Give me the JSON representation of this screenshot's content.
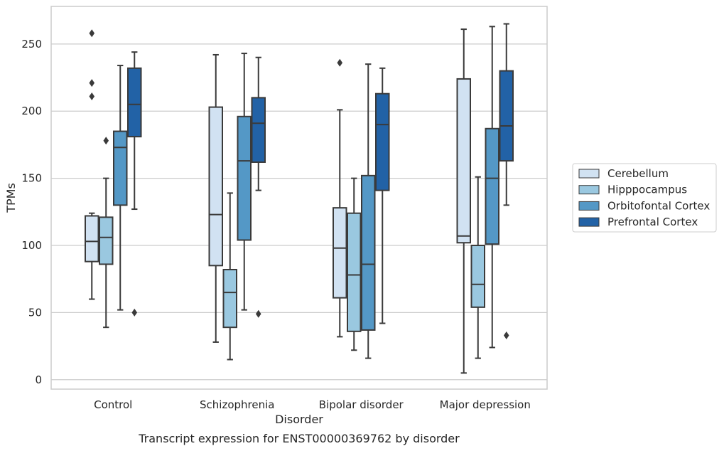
{
  "chart_data": {
    "type": "box",
    "title": "",
    "caption": "Transcript expression for ENST00000369762 by disorder",
    "xlabel": "Disorder",
    "ylabel": "TPMs",
    "ylim": [
      -7,
      278
    ],
    "yticks": [
      0,
      50,
      100,
      150,
      200,
      250
    ],
    "grid": "horizontal",
    "legend_position": "right",
    "categories": [
      "Control",
      "Schizophrenia",
      "Bipolar disorder",
      "Major depression"
    ],
    "series": [
      {
        "name": "Cerebellum",
        "color": "#d1e2f2",
        "boxes": [
          {
            "whisker_low": 60,
            "q1": 88,
            "median": 103,
            "q3": 122,
            "whisker_high": 124,
            "outliers": [
              258,
              221,
              211
            ]
          },
          {
            "whisker_low": 28,
            "q1": 85,
            "median": 123,
            "q3": 203,
            "whisker_high": 242,
            "outliers": []
          },
          {
            "whisker_low": 32,
            "q1": 61,
            "median": 98,
            "q3": 128,
            "whisker_high": 201,
            "outliers": [
              236
            ]
          },
          {
            "whisker_low": 5,
            "q1": 102,
            "median": 107,
            "q3": 224,
            "whisker_high": 261,
            "outliers": []
          }
        ]
      },
      {
        "name": "Hipppocampus",
        "color": "#9ac8e0",
        "boxes": [
          {
            "whisker_low": 39,
            "q1": 86,
            "median": 106,
            "q3": 121,
            "whisker_high": 150,
            "outliers": [
              178
            ]
          },
          {
            "whisker_low": 15,
            "q1": 39,
            "median": 65,
            "q3": 82,
            "whisker_high": 139,
            "outliers": []
          },
          {
            "whisker_low": 22,
            "q1": 36,
            "median": 78,
            "q3": 124,
            "whisker_high": 150,
            "outliers": []
          },
          {
            "whisker_low": 16,
            "q1": 54,
            "median": 71,
            "q3": 100,
            "whisker_high": 151,
            "outliers": []
          }
        ]
      },
      {
        "name": "Orbitofontal Cortex",
        "color": "#5498c6",
        "boxes": [
          {
            "whisker_low": 52,
            "q1": 130,
            "median": 173,
            "q3": 185,
            "whisker_high": 234,
            "outliers": []
          },
          {
            "whisker_low": 52,
            "q1": 104,
            "median": 163,
            "q3": 196,
            "whisker_high": 243,
            "outliers": []
          },
          {
            "whisker_low": 16,
            "q1": 37,
            "median": 86,
            "q3": 152,
            "whisker_high": 235,
            "outliers": []
          },
          {
            "whisker_low": 24,
            "q1": 101,
            "median": 150,
            "q3": 187,
            "whisker_high": 263,
            "outliers": []
          }
        ]
      },
      {
        "name": "Prefrontal Cortex",
        "color": "#2262a6",
        "boxes": [
          {
            "whisker_low": 127,
            "q1": 181,
            "median": 205,
            "q3": 232,
            "whisker_high": 244,
            "outliers": [
              50
            ]
          },
          {
            "whisker_low": 141,
            "q1": 162,
            "median": 191,
            "q3": 210,
            "whisker_high": 240,
            "outliers": [
              49
            ]
          },
          {
            "whisker_low": 42,
            "q1": 141,
            "median": 190,
            "q3": 213,
            "whisker_high": 232,
            "outliers": []
          },
          {
            "whisker_low": 130,
            "q1": 163,
            "median": 189,
            "q3": 230,
            "whisker_high": 265,
            "outliers": [
              33
            ]
          }
        ]
      }
    ]
  }
}
